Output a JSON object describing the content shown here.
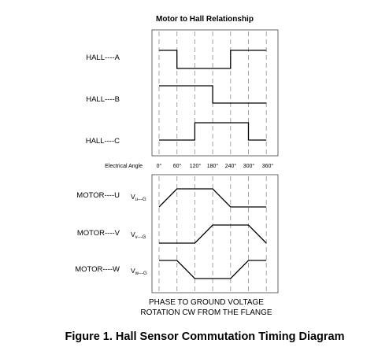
{
  "diagram": {
    "title": "Motor to Hall Relationship",
    "axis_label": "Electrical Angle",
    "angle_ticks": [
      "0°",
      "60°",
      "120°",
      "180°",
      "240°",
      "300°",
      "360°"
    ],
    "hall_signals": [
      {
        "label": "HALL----A",
        "levels": [
          1,
          0,
          0,
          0,
          1,
          1
        ]
      },
      {
        "label": "HALL----B",
        "levels": [
          1,
          1,
          1,
          0,
          0,
          0
        ]
      },
      {
        "label": "HALL----C",
        "levels": [
          0,
          0,
          1,
          1,
          1,
          0
        ]
      }
    ],
    "motor_signals": [
      {
        "label": "MOTOR----U",
        "voltage_main": "V",
        "voltage_sub": "u---G",
        "levels": [
          0,
          1,
          1,
          1,
          0,
          0,
          0
        ]
      },
      {
        "label": "MOTOR----V",
        "voltage_main": "V",
        "voltage_sub": "v---G",
        "levels": [
          0,
          0,
          0,
          1,
          1,
          1,
          0
        ]
      },
      {
        "label": "MOTOR----W",
        "voltage_main": "V",
        "voltage_sub": "w---G",
        "levels": [
          1,
          1,
          0,
          0,
          0,
          1,
          1
        ]
      }
    ],
    "footer_line1": "PHASE TO GROUND VOLTAGE",
    "footer_line2": "ROTATION CW FROM THE FLANGE",
    "figure_caption": "Figure 1. Hall Sensor Commutation Timing Diagram",
    "colors": {
      "wave": "#000000",
      "grid": "#9a9a9a",
      "frame": "#555555"
    }
  }
}
